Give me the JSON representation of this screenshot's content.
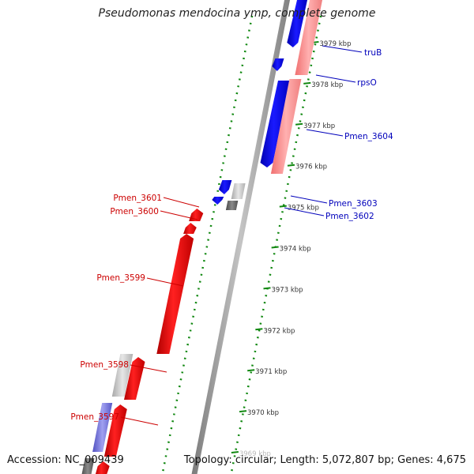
{
  "title": "Pseudomonas mendocina ymp, complete genome",
  "footer": {
    "accession": "Accession: NC_009439",
    "summary": "Topology: circular; Length: 5,072,807 bp; Genes: 4,675"
  },
  "scale": {
    "unit": "kbp",
    "ticks": [
      "3979 kbp",
      "3978 kbp",
      "3977 kbp",
      "3976 kbp",
      "3975 kbp",
      "3974 kbp",
      "3973 kbp",
      "3972 kbp",
      "3971 kbp",
      "3970 kbp",
      "3969 kbp"
    ]
  },
  "colors": {
    "forward_gene": "#ee1111",
    "reverse_gene": "#1414e6",
    "forward_label": "#cc0000",
    "reverse_label": "#0000bb",
    "pseudo_gene": "#c8c8c8",
    "rna_gene": "#8080e0",
    "backbone": "#9a9a9a",
    "tick_marks": "#118811"
  },
  "gene_labels_forward": [
    "Pmen_3601",
    "Pmen_3600",
    "Pmen_3599",
    "Pmen_3598",
    "Pmen_3597"
  ],
  "gene_labels_reverse": [
    "truB",
    "rpsO",
    "Pmen_3604",
    "Pmen_3603",
    "Pmen_3602"
  ]
}
